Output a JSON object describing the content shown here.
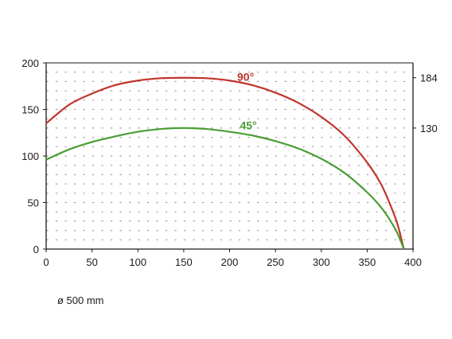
{
  "chart_data": {
    "type": "line",
    "xlim": [
      0,
      400
    ],
    "ylim": [
      0,
      200
    ],
    "x_ticks": [
      0,
      50,
      100,
      150,
      200,
      250,
      300,
      350,
      400
    ],
    "y_ticks": [
      0,
      50,
      100,
      150,
      200
    ],
    "right_ticks": [
      130,
      184
    ],
    "grid": "dotted",
    "series": [
      {
        "name": "90°",
        "color": "#c0352b",
        "label_at": [
          210,
          185
        ],
        "x": [
          0,
          25,
          50,
          75,
          100,
          125,
          150,
          175,
          200,
          225,
          250,
          275,
          300,
          325,
          350,
          365,
          375,
          383,
          390
        ],
        "y": [
          135,
          155,
          167,
          176,
          181,
          183.5,
          184,
          183.5,
          181,
          176,
          168,
          157,
          142,
          122,
          93,
          70,
          48,
          27,
          0
        ]
      },
      {
        "name": "45°",
        "color": "#4a9e35",
        "label_at": [
          213,
          133
        ],
        "x": [
          0,
          25,
          50,
          75,
          100,
          125,
          150,
          175,
          200,
          225,
          250,
          275,
          300,
          325,
          350,
          365,
          375,
          383,
          390
        ],
        "y": [
          96,
          107,
          115,
          121,
          126,
          129,
          130,
          129,
          126,
          122,
          116,
          108,
          97,
          82,
          61,
          45,
          31,
          17,
          0
        ]
      }
    ],
    "annotation": "ø  500 mm"
  }
}
